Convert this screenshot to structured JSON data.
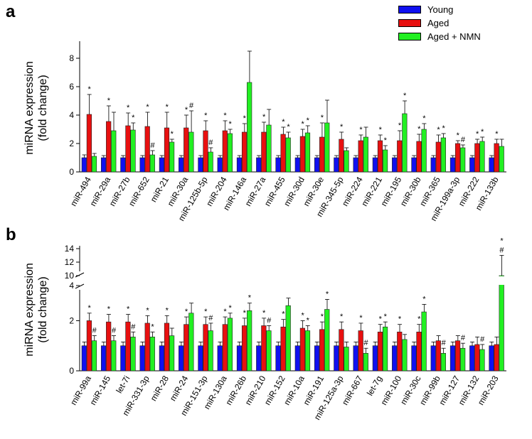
{
  "colors": {
    "young": "#1010f0",
    "aged": "#e81010",
    "aged_nmn": "#22f022"
  },
  "legend": {
    "young": "Young",
    "aged": "Aged",
    "aged_nmn": "Aged + NMN"
  },
  "chart_data": [
    {
      "panel": "a",
      "type": "bar",
      "ylabel": "miRNA expression\n(fold change)",
      "ylim": [
        0,
        9
      ],
      "yticks": [
        0,
        2,
        4,
        6,
        8
      ],
      "categories": [
        "miR-494",
        "miR-29a",
        "miR-27b",
        "miR-652",
        "miR-21",
        "miR-30a",
        "miR-125b-5p",
        "miR-204",
        "miR-146a",
        "miR-27a",
        "miR-455",
        "miR-30d",
        "miR-30e",
        "miR-345-5p",
        "miR-224",
        "miR-221",
        "miR-195",
        "miR-30b",
        "miR-365",
        "miR-199a-3p",
        "miR-222",
        "miR-133b"
      ],
      "series": [
        {
          "name": "Young",
          "values": [
            1.0,
            1.0,
            1.0,
            1.0,
            1.0,
            1.0,
            1.0,
            1.0,
            1.0,
            1.0,
            1.0,
            1.0,
            1.0,
            1.0,
            1.0,
            1.0,
            1.0,
            1.0,
            1.0,
            1.0,
            1.0,
            1.0
          ],
          "errors": [
            0.2,
            0.15,
            0.15,
            0.15,
            0.15,
            0.15,
            0.15,
            0.15,
            0.15,
            0.15,
            0.15,
            0.15,
            0.15,
            0.15,
            0.15,
            0.15,
            0.15,
            0.15,
            0.15,
            0.15,
            0.15,
            0.15
          ],
          "marks": [
            "",
            "",
            "",
            "",
            "",
            "",
            "",
            "",
            "",
            "",
            "",
            "",
            "",
            "",
            "",
            "",
            "",
            "",
            "",
            "",
            "",
            ""
          ]
        },
        {
          "name": "Aged",
          "values": [
            4.05,
            3.55,
            3.25,
            3.2,
            3.1,
            3.1,
            2.9,
            2.9,
            2.8,
            2.8,
            2.65,
            2.5,
            2.45,
            2.3,
            2.2,
            2.2,
            2.2,
            2.15,
            2.1,
            2.0,
            2.0,
            2.0
          ],
          "errors": [
            1.4,
            1.1,
            0.9,
            1.0,
            1.1,
            0.9,
            0.7,
            0.7,
            0.6,
            0.7,
            0.5,
            0.5,
            1.0,
            0.5,
            0.4,
            0.4,
            0.7,
            0.5,
            0.5,
            0.2,
            0.3,
            0.3
          ],
          "marks": [
            "*",
            "*",
            "*",
            "*",
            "*",
            "*",
            "*",
            "*",
            "*",
            "*",
            "*",
            "*",
            "*",
            "*",
            "*",
            "*",
            "*",
            "*",
            "*",
            "*",
            "*",
            "*"
          ]
        },
        {
          "name": "Aged + NMN",
          "values": [
            1.1,
            2.9,
            2.95,
            1.2,
            2.1,
            2.8,
            1.4,
            2.7,
            6.3,
            3.3,
            2.4,
            2.75,
            3.45,
            1.5,
            2.45,
            1.55,
            4.1,
            3.0,
            2.4,
            1.7,
            2.15,
            1.8
          ],
          "errors": [
            0.2,
            1.3,
            0.5,
            0.3,
            0.2,
            1.5,
            0.3,
            0.3,
            2.2,
            1.1,
            0.4,
            0.5,
            1.6,
            0.2,
            0.7,
            0.3,
            0.9,
            0.4,
            0.3,
            0.2,
            0.3,
            0.5
          ],
          "marks": [
            "",
            "",
            "*",
            "#",
            "*",
            "#",
            "#",
            "*",
            "",
            "",
            "*",
            "*",
            "",
            "",
            "",
            "*",
            "*",
            "*",
            "*",
            "#",
            "*",
            ""
          ]
        }
      ]
    },
    {
      "panel": "b",
      "type": "bar",
      "ylabel": "miRNA expression\n(fold change)",
      "ylim": [
        0,
        14
      ],
      "axis_break": [
        3.4,
        10
      ],
      "yticks": [
        0,
        2,
        4,
        10,
        12,
        14
      ],
      "categories": [
        "miR-99a",
        "miR-145",
        "let-7i",
        "miR-331-3p",
        "miR-28",
        "miR-24",
        "miR-151-3p",
        "miR-130a",
        "miR-26b",
        "miR-210",
        "miR-152",
        "miR-10a",
        "miR-191",
        "miR-125a-3p",
        "miR-667",
        "let-7g",
        "miR-100",
        "miR-30c",
        "miR-99b",
        "miR-127",
        "miR-132",
        "miR-203"
      ],
      "series": [
        {
          "name": "Young",
          "values": [
            1.0,
            1.0,
            1.0,
            1.0,
            1.0,
            1.0,
            1.0,
            1.0,
            1.0,
            1.0,
            1.0,
            1.0,
            1.0,
            1.0,
            1.0,
            1.0,
            1.0,
            1.0,
            1.0,
            1.0,
            1.0,
            1.0
          ],
          "errors": [
            0.15,
            0.15,
            0.15,
            0.15,
            0.15,
            0.15,
            0.15,
            0.15,
            0.15,
            0.15,
            0.15,
            0.15,
            0.15,
            0.15,
            0.15,
            0.15,
            0.15,
            0.15,
            0.15,
            0.15,
            0.15,
            0.15
          ],
          "marks": [
            "",
            "",
            "",
            "",
            "",
            "",
            "",
            "",
            "",
            "",
            "",
            "",
            "",
            "",
            "",
            "",
            "",
            "",
            "",
            "",
            "",
            ""
          ]
        },
        {
          "name": "Aged",
          "values": [
            2.0,
            1.95,
            1.95,
            1.9,
            1.9,
            1.85,
            1.85,
            1.85,
            1.8,
            1.8,
            1.75,
            1.7,
            1.65,
            1.65,
            1.6,
            1.55,
            1.55,
            1.55,
            1.2,
            1.2,
            1.05,
            1.05
          ],
          "errors": [
            0.3,
            0.3,
            0.3,
            0.3,
            0.3,
            0.3,
            0.3,
            0.3,
            0.3,
            0.3,
            0.3,
            0.3,
            0.3,
            0.3,
            0.3,
            0.3,
            0.3,
            0.3,
            0.2,
            0.2,
            0.3,
            0.3
          ],
          "marks": [
            "*",
            "*",
            "*",
            "*",
            "*",
            "*",
            "*",
            "*",
            "*",
            "*",
            "*",
            "*",
            "*",
            "*",
            "*",
            "*",
            "*",
            "*",
            "",
            "",
            "",
            ""
          ]
        },
        {
          "name": "Aged + NMN",
          "values": [
            1.2,
            1.2,
            1.35,
            1.35,
            1.4,
            2.3,
            1.6,
            2.1,
            2.4,
            1.6,
            2.6,
            1.6,
            2.45,
            0.95,
            0.7,
            1.75,
            1.25,
            2.35,
            0.7,
            0.9,
            0.85,
            10.0
          ],
          "errors": [
            0.2,
            0.2,
            0.2,
            0.2,
            0.3,
            0.4,
            0.3,
            0.2,
            0.3,
            0.2,
            0.3,
            0.2,
            0.4,
            0.2,
            0.2,
            0.2,
            0.2,
            0.3,
            0.2,
            0.2,
            0.2,
            3.0
          ],
          "marks": [
            "#",
            "#",
            "#",
            "*",
            "",
            "",
            "#",
            "*",
            "*",
            "#",
            "",
            "*",
            "*",
            "",
            "#",
            "*",
            "",
            "*",
            "#",
            "#",
            "#",
            "*#"
          ]
        }
      ]
    }
  ],
  "panel_labels": {
    "a": "a",
    "b": "b"
  }
}
